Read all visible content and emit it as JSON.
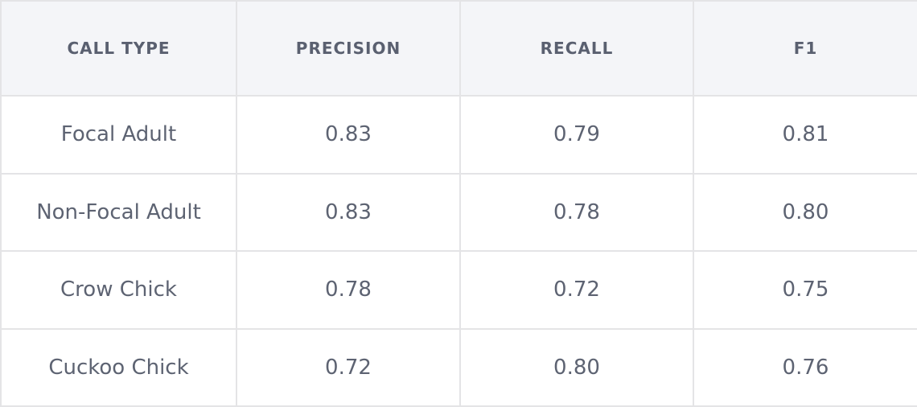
{
  "table": {
    "header": [
      "CALL TYPE",
      "PRECISION",
      "RECALL",
      "F1"
    ],
    "rows": [
      [
        "Focal Adult",
        "0.83",
        "0.79",
        "0.81"
      ],
      [
        "Non-Focal Adult",
        "0.83",
        "0.78",
        "0.80"
      ],
      [
        "Crow Chick",
        "0.78",
        "0.72",
        "0.75"
      ],
      [
        "Cuckoo Chick",
        "0.72",
        "0.80",
        "0.76"
      ]
    ]
  }
}
